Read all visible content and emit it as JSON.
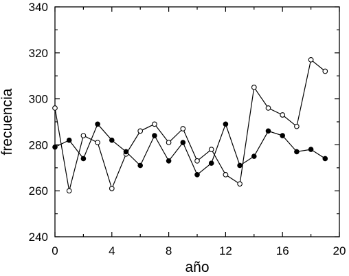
{
  "chart_data": {
    "type": "line",
    "title": "",
    "xlabel": "año",
    "ylabel": "frecuencia",
    "xlim": [
      0,
      20
    ],
    "ylim": [
      240,
      340
    ],
    "x_ticks": [
      "0",
      "4",
      "8",
      "12",
      "16",
      "20"
    ],
    "y_ticks": [
      "240",
      "260",
      "280",
      "300",
      "320",
      "340"
    ],
    "grid": false,
    "legend": "none",
    "series": [
      {
        "marker": "open-circle",
        "x": [
          0,
          1,
          2,
          3,
          4,
          5,
          6,
          7,
          8,
          9,
          10,
          11,
          12,
          13,
          14,
          15,
          16,
          17,
          18,
          19
        ],
        "values": [
          296,
          260,
          284,
          281,
          261,
          276,
          286,
          289,
          281,
          287,
          273,
          278,
          267,
          263,
          305,
          296,
          293,
          288,
          317,
          312
        ]
      },
      {
        "marker": "filled-circle",
        "x": [
          0,
          1,
          2,
          3,
          4,
          5,
          6,
          7,
          8,
          9,
          10,
          11,
          12,
          13,
          14,
          15,
          16,
          17,
          18,
          19
        ],
        "values": [
          279,
          282,
          274,
          289,
          282,
          277,
          271,
          284,
          273,
          281,
          267,
          272,
          289,
          271,
          275,
          286,
          284,
          277,
          278,
          274
        ]
      }
    ]
  }
}
